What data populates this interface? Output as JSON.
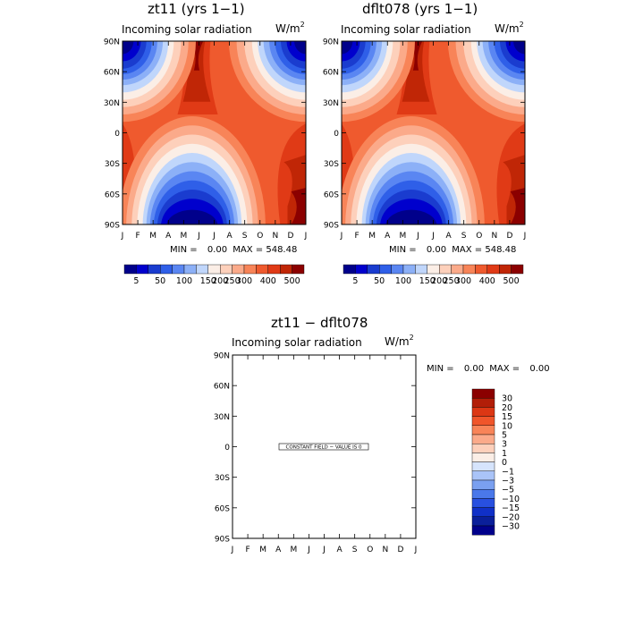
{
  "chart_data": [
    {
      "type": "heatmap",
      "title": "zt11 (yrs 1−1)",
      "subtitle": "Incoming solar radiation",
      "units_base": "W/m",
      "units_sup": "2",
      "x_ticks": [
        "J",
        "F",
        "M",
        "A",
        "M",
        "J",
        "J",
        "A",
        "S",
        "O",
        "N",
        "D",
        "J"
      ],
      "y_ticks": [
        "90N",
        "60N",
        "30N",
        "0",
        "30S",
        "60S",
        "90S"
      ],
      "min_label": "MIN =",
      "min_value": "0.00",
      "max_label": "MAX =",
      "max_value": "548.48",
      "colorbar_labels": [
        "5",
        "50",
        "100",
        "150",
        "200",
        "250",
        "300",
        "400",
        "500"
      ]
    },
    {
      "type": "heatmap",
      "title": "dflt078 (yrs 1−1)",
      "subtitle": "Incoming solar radiation",
      "units_base": "W/m",
      "units_sup": "2",
      "x_ticks": [
        "J",
        "F",
        "M",
        "A",
        "M",
        "J",
        "J",
        "A",
        "S",
        "O",
        "N",
        "D",
        "J"
      ],
      "y_ticks": [
        "90N",
        "60N",
        "30N",
        "0",
        "30S",
        "60S",
        "90S"
      ],
      "min_label": "MIN =",
      "min_value": "0.00",
      "max_label": "MAX =",
      "max_value": "548.48",
      "colorbar_labels": [
        "5",
        "50",
        "100",
        "150",
        "200",
        "250",
        "300",
        "400",
        "500"
      ]
    },
    {
      "type": "heatmap",
      "title": "zt11 − dflt078",
      "subtitle": "Incoming solar radiation",
      "units_base": "W/m",
      "units_sup": "2",
      "x_ticks": [
        "J",
        "F",
        "M",
        "A",
        "M",
        "J",
        "J",
        "A",
        "S",
        "O",
        "N",
        "D",
        "J"
      ],
      "y_ticks": [
        "90N",
        "60N",
        "30N",
        "0",
        "30S",
        "60S",
        "90S"
      ],
      "min_label": "MIN =",
      "min_value": "0.00",
      "max_label": "MAX =",
      "max_value": "0.00",
      "constant_field_text": "CONSTANT FIELD − VALUE IS 0",
      "colorbar_labels": [
        "30",
        "20",
        "15",
        "10",
        "5",
        "3",
        "1",
        "0",
        "−1",
        "−3",
        "−5",
        "−10",
        "−15",
        "−20",
        "−30"
      ]
    }
  ],
  "palette": {
    "levels_abs": [
      "#00008b",
      "#0000cd",
      "#1a3ccf",
      "#2f5fe8",
      "#5a86f2",
      "#8cb0f7",
      "#c0d6fb",
      "#fbeee6",
      "#fdd0bb",
      "#fbaa8a",
      "#f88458",
      "#ef5a2e",
      "#e03a16",
      "#c02606",
      "#8b0000"
    ],
    "levels_diff": [
      "#8b0000",
      "#b21e08",
      "#dc3714",
      "#f0552a",
      "#f88458",
      "#fbaa8a",
      "#fdd0bb",
      "#fbeee6",
      "#d6e4fc",
      "#aac4f8",
      "#7aa0f0",
      "#4a78ea",
      "#2850e0",
      "#1030c8",
      "#0a1f9a",
      "#00008b"
    ]
  }
}
